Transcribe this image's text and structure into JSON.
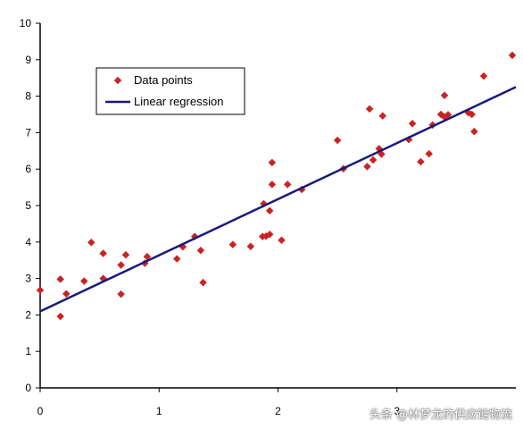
{
  "chart_data": {
    "type": "scatter",
    "title": "",
    "xlabel": "",
    "ylabel": "",
    "xlim": [
      0,
      4
    ],
    "ylim": [
      0,
      10
    ],
    "x_ticks": [
      0,
      1,
      2,
      3
    ],
    "y_ticks": [
      0,
      1,
      2,
      3,
      4,
      5,
      6,
      7,
      8,
      9,
      10
    ],
    "grid": false,
    "legend_position": "top-left",
    "series": [
      {
        "name": "Data points",
        "kind": "scatter",
        "color": "#cc2222",
        "marker": "diamond",
        "x": [
          0.0,
          0.17,
          0.17,
          0.22,
          0.37,
          0.43,
          0.53,
          0.53,
          0.68,
          0.68,
          0.72,
          0.88,
          0.9,
          1.15,
          1.2,
          1.3,
          1.35,
          1.37,
          1.62,
          1.77,
          1.87,
          1.88,
          1.9,
          1.93,
          1.93,
          1.95,
          1.95,
          2.03,
          2.08,
          2.2,
          2.5,
          2.55,
          2.75,
          2.77,
          2.8,
          2.85,
          2.87,
          2.88,
          3.1,
          3.13,
          3.2,
          3.27,
          3.3,
          3.37,
          3.4,
          3.4,
          3.43,
          3.6,
          3.63,
          3.65,
          3.73,
          3.97
        ],
        "y": [
          2.68,
          1.96,
          2.98,
          2.58,
          2.93,
          3.99,
          3.0,
          3.69,
          2.57,
          3.37,
          3.65,
          3.42,
          3.6,
          3.54,
          3.87,
          4.15,
          3.77,
          2.89,
          3.93,
          3.88,
          4.15,
          5.05,
          4.16,
          4.21,
          4.86,
          5.58,
          6.18,
          4.05,
          5.58,
          5.44,
          6.79,
          6.01,
          6.07,
          7.65,
          6.25,
          6.56,
          6.41,
          7.46,
          6.81,
          7.25,
          6.2,
          6.42,
          7.21,
          7.5,
          7.43,
          8.02,
          7.49,
          7.55,
          7.5,
          7.03,
          8.55,
          9.12
        ]
      },
      {
        "name": "Linear regression",
        "kind": "line",
        "color": "#1a1a7a",
        "x": [
          0,
          4
        ],
        "y": [
          2.1,
          8.25
        ]
      }
    ]
  },
  "watermark": "头条 @林梦龙的供应链物流"
}
